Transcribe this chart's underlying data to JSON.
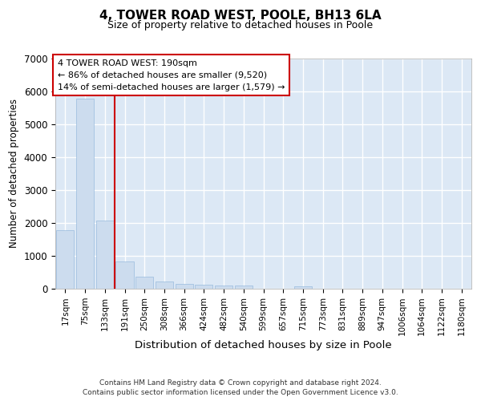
{
  "title": "4, TOWER ROAD WEST, POOLE, BH13 6LA",
  "subtitle": "Size of property relative to detached houses in Poole",
  "xlabel": "Distribution of detached houses by size in Poole",
  "ylabel": "Number of detached properties",
  "bar_color": "#ccdcee",
  "bar_edge_color": "#99bbdd",
  "background_color": "#dce8f5",
  "grid_color": "#ffffff",
  "vline_color": "#cc0000",
  "annotation_line1": "4 TOWER ROAD WEST: 190sqm",
  "annotation_line2": "← 86% of detached houses are smaller (9,520)",
  "annotation_line3": "14% of semi-detached houses are larger (1,579) →",
  "footer_line1": "Contains HM Land Registry data © Crown copyright and database right 2024.",
  "footer_line2": "Contains public sector information licensed under the Open Government Licence v3.0.",
  "categories": [
    "17sqm",
    "75sqm",
    "133sqm",
    "191sqm",
    "250sqm",
    "308sqm",
    "366sqm",
    "424sqm",
    "482sqm",
    "540sqm",
    "599sqm",
    "657sqm",
    "715sqm",
    "773sqm",
    "831sqm",
    "889sqm",
    "947sqm",
    "1006sqm",
    "1064sqm",
    "1122sqm",
    "1180sqm"
  ],
  "values": [
    1780,
    5780,
    2060,
    830,
    370,
    230,
    140,
    115,
    105,
    100,
    0,
    0,
    85,
    0,
    0,
    0,
    0,
    0,
    0,
    0,
    0
  ],
  "vline_after_index": 2,
  "ylim": [
    0,
    7000
  ],
  "yticks": [
    0,
    1000,
    2000,
    3000,
    4000,
    5000,
    6000,
    7000
  ]
}
